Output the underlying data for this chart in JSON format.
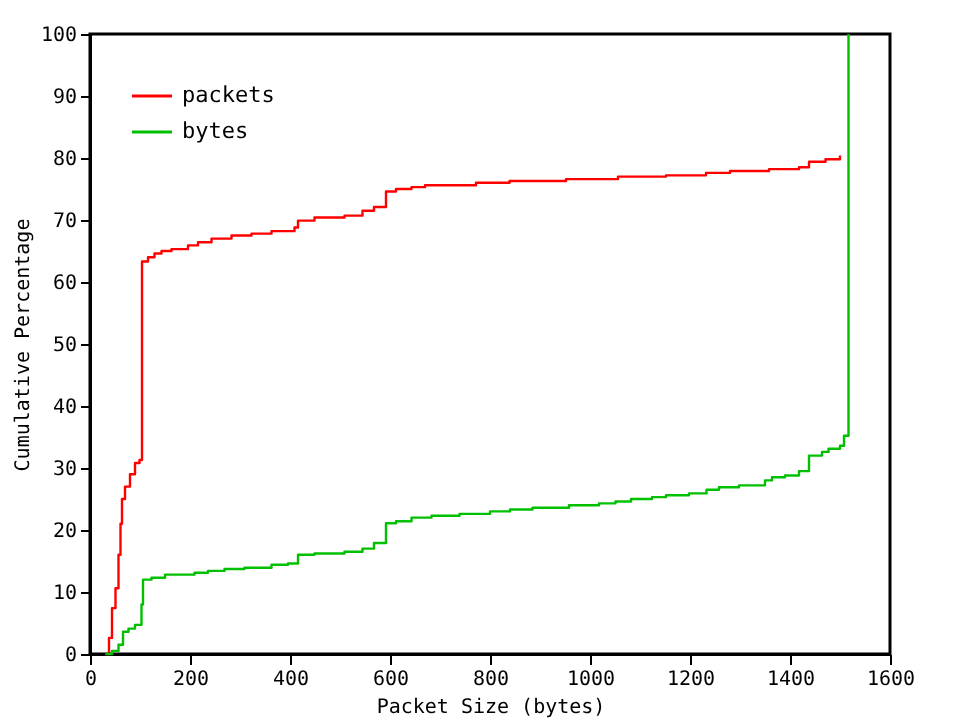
{
  "chart_data": {
    "type": "step",
    "xlabel": "Packet Size (bytes)",
    "ylabel": "Cumulative Percentage",
    "xlim": [
      0,
      1600
    ],
    "xticks": [
      0,
      200,
      400,
      600,
      800,
      1000,
      1200,
      1400,
      1600
    ],
    "ylim": [
      0,
      100
    ],
    "yticks": [
      0,
      10,
      20,
      30,
      40,
      50,
      60,
      70,
      80,
      90,
      100
    ],
    "grid": false,
    "legend": "top left",
    "marker": "none",
    "line_style": "solid",
    "series": [
      {
        "name": "packets",
        "color": "#ff0000",
        "x": [
          31,
          38,
          44,
          51,
          57,
          61,
          64,
          70,
          80,
          90,
          99,
          104,
          116,
          129,
          143,
          163,
          196,
          216,
          243,
          283,
          323,
          363,
          409,
          416,
          449,
          509,
          545,
          568,
          592,
          612,
          643,
          670,
          772,
          839,
          952,
          1056,
          1152,
          1232,
          1280,
          1358,
          1418,
          1438,
          1471,
          1500
        ],
        "values": [
          0,
          2.6,
          7.4,
          10.6,
          16,
          21,
          25,
          27,
          29,
          30.8,
          31.3,
          63.3,
          64,
          64.6,
          65,
          65.3,
          65.9,
          66.4,
          67,
          67.5,
          67.8,
          68.2,
          68.8,
          69.9,
          70.4,
          70.7,
          71.5,
          72.1,
          74.6,
          75,
          75.3,
          75.6,
          76,
          76.3,
          76.6,
          77,
          77.2,
          77.6,
          77.9,
          78.2,
          78.5,
          79.4,
          79.8,
          80.4
        ]
      },
      {
        "name": "bytes",
        "color": "#00c000",
        "x": [
          31,
          44,
          57,
          66,
          77,
          90,
          99,
          103,
          106,
          123,
          150,
          209,
          236,
          269,
          309,
          363,
          396,
          416,
          449,
          509,
          545,
          568,
          592,
          612,
          643,
          683,
          739,
          800,
          840,
          885,
          958,
          1018,
          1051,
          1082,
          1124,
          1152,
          1198,
          1233,
          1258,
          1298,
          1350,
          1364,
          1390,
          1418,
          1438,
          1464,
          1477,
          1500,
          1508,
          1517
        ],
        "values": [
          0,
          0.5,
          1.5,
          3.6,
          4.1,
          4.7,
          4.7,
          8,
          12,
          12.3,
          12.8,
          13.1,
          13.4,
          13.7,
          13.9,
          14.4,
          14.6,
          16,
          16.2,
          16.5,
          17,
          17.9,
          21.1,
          21.4,
          22,
          22.3,
          22.6,
          23,
          23.3,
          23.6,
          24,
          24.3,
          24.6,
          25,
          25.3,
          25.6,
          25.9,
          26.5,
          26.9,
          27.2,
          28,
          28.5,
          28.8,
          29.5,
          32,
          32.6,
          33.1,
          33.6,
          35.2,
          100
        ]
      }
    ]
  }
}
